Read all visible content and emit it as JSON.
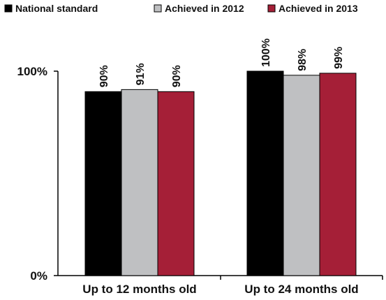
{
  "chart_data": {
    "type": "bar",
    "title": "",
    "xlabel": "",
    "ylabel": "",
    "ylim": [
      0,
      100
    ],
    "y_ticks": [
      "0%",
      "100%"
    ],
    "grid": false,
    "legend_position": "top",
    "categories": [
      "Up to 12 months old",
      "Up to 24 months old"
    ],
    "series": [
      {
        "name": "National standard",
        "values": [
          90,
          100
        ],
        "labels": [
          "90%",
          "100%"
        ],
        "color": "#000000"
      },
      {
        "name": "Achieved in 2012",
        "values": [
          91,
          98
        ],
        "labels": [
          "91%",
          "98%"
        ],
        "color": "#bfc0c2"
      },
      {
        "name": "Achieved in 2013",
        "values": [
          90,
          99
        ],
        "labels": [
          "90%",
          "99%"
        ],
        "color": "#a51f37"
      }
    ]
  }
}
